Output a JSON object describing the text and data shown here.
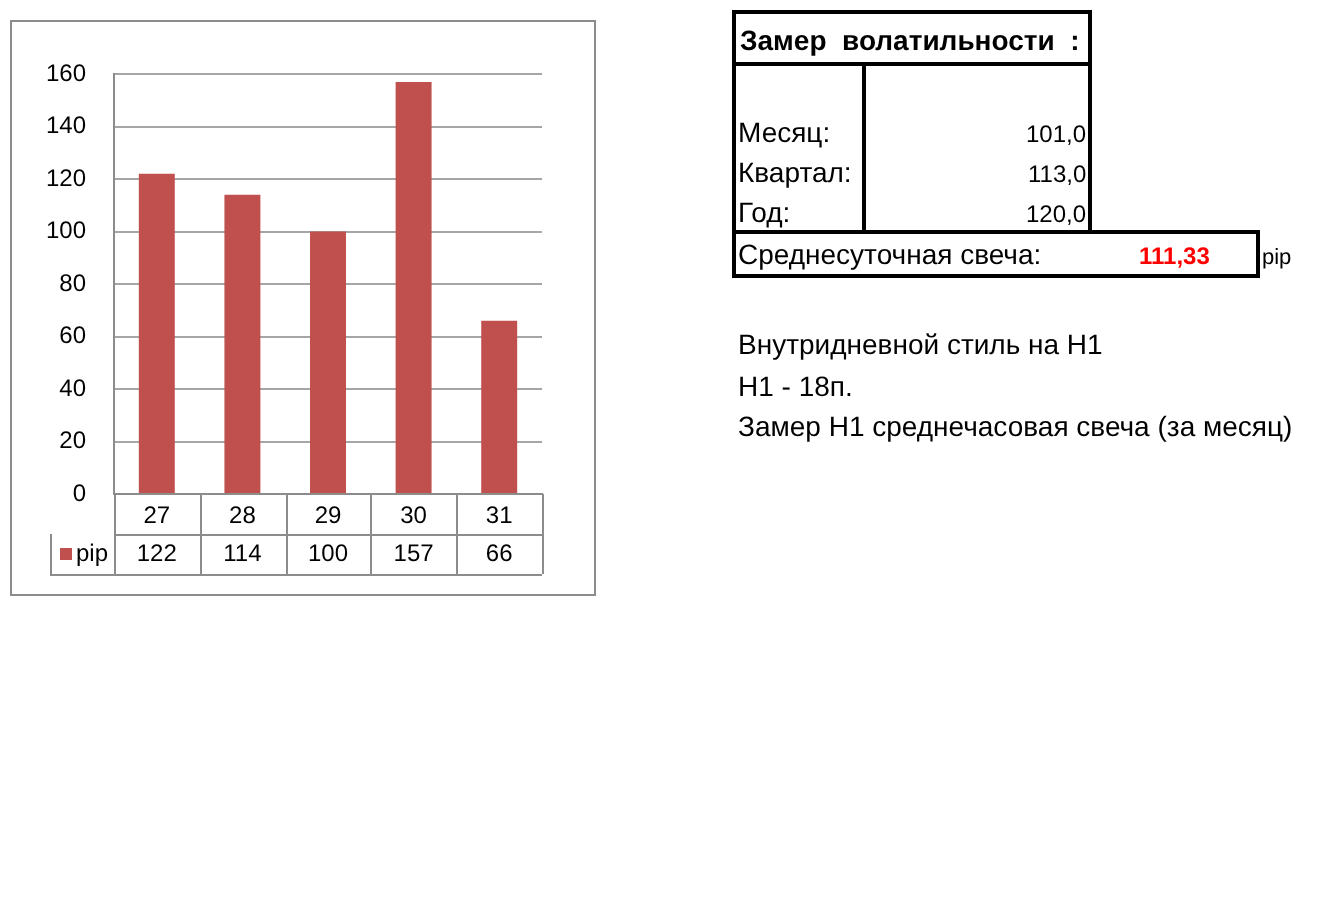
{
  "chart_data": {
    "type": "bar",
    "categories": [
      "27",
      "28",
      "29",
      "30",
      "31"
    ],
    "series": [
      {
        "name": "pip",
        "color": "#c0504d",
        "values": [
          122,
          114,
          100,
          157,
          66
        ]
      }
    ],
    "ylim": [
      0,
      160
    ],
    "yticks": [
      0,
      20,
      40,
      60,
      80,
      100,
      120,
      140,
      160
    ],
    "grid": "y",
    "legend": "bottom left",
    "data_labels": true,
    "annotations": [
      "Замер  волатильности  :",
      "Месяц:",
      "101,0",
      "Квартал:",
      "113,0",
      "Год:",
      "120,0",
      "Среднесуточная свеча:",
      "111,33",
      "pip",
      "Внутридневной стиль на H1",
      "H1 - 18п.",
      "Замер H1 среднечасовая свеча (за месяц)"
    ]
  }
}
